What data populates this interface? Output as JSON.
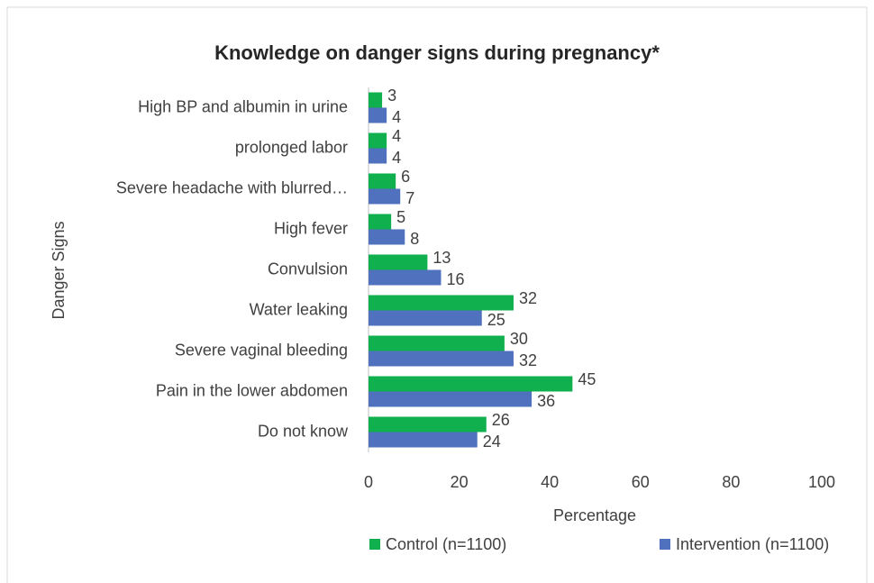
{
  "chart_data": {
    "type": "bar",
    "orientation": "horizontal",
    "title": "Knowledge on danger signs during pregnancy*",
    "x_label": "Percentage",
    "y_label": "Danger Signs",
    "categories": [
      "High BP and albumin in urine",
      "prolonged labor",
      "Severe headache with blurred…",
      "High fever",
      "Convulsion",
      "Water leaking",
      "Severe vaginal bleeding",
      "Pain in the lower abdomen",
      "Do not know"
    ],
    "series": [
      {
        "name": "Control (n=1100)",
        "color": "#11b04f",
        "values": [
          3,
          4,
          6,
          5,
          13,
          32,
          30,
          45,
          26
        ]
      },
      {
        "name": "Intervention (n=1100)",
        "color": "#4f71be",
        "values": [
          4,
          4,
          7,
          8,
          16,
          25,
          32,
          36,
          24
        ]
      }
    ],
    "xlim": [
      0,
      100
    ],
    "xticks": [
      0,
      20,
      40,
      60,
      80,
      100
    ],
    "grid": false,
    "legend": "bottom"
  }
}
